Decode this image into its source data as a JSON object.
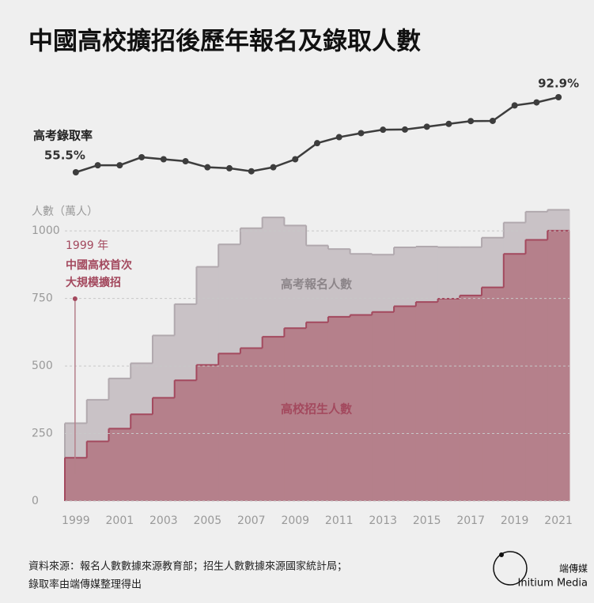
{
  "title": "中國高校擴招後歷年報名及錄取人數",
  "source": [
    "資料來源：報名人數數據來源教育部；招生人數數據來源國家統計局；",
    "錄取率由端傳媒整理得出"
  ],
  "brand": {
    "name": "端傳媒",
    "en": "Initium Media"
  },
  "chart_data": [
    {
      "type": "line",
      "label": "高考錄取率",
      "color": "#3d3d3d",
      "values": [
        55.5,
        59,
        59,
        63,
        62,
        61,
        58,
        57.5,
        56,
        58,
        62,
        70,
        73,
        75,
        76.7,
        76.8,
        78.2,
        79.6,
        81,
        81.1,
        88.8,
        90.3,
        92.9
      ],
      "value_labels": [
        "55.5%",
        null,
        null,
        null,
        null,
        null,
        null,
        null,
        null,
        null,
        null,
        null,
        null,
        null,
        null,
        null,
        null,
        null,
        null,
        null,
        null,
        null,
        "92.9%"
      ]
    },
    {
      "type": "step",
      "ylabel": "人數（萬人）",
      "categories": [
        "1999",
        null,
        "2001",
        null,
        "2003",
        null,
        "2005",
        null,
        "2007",
        null,
        "2009",
        null,
        "2011",
        null,
        "2013",
        null,
        "2015",
        null,
        "2017",
        null,
        "2019",
        null,
        "2021"
      ],
      "series": [
        {
          "name": "高考報名人數",
          "color": "#c9c2c6",
          "edge": "#b1a9ae",
          "label_color": "#8c8589",
          "values": [
            288,
            375,
            454,
            510,
            613,
            729,
            867,
            950,
            1010,
            1050,
            1020,
            946,
            933,
            915,
            912,
            939,
            942,
            940,
            940,
            975,
            1031,
            1071,
            1078
          ]
        },
        {
          "name": "高校招生人數",
          "color": "#b5808b",
          "edge": "#a3495e",
          "label_color": "#a3495e",
          "values": [
            160,
            221,
            268,
            321,
            382,
            447,
            504,
            546,
            566,
            608,
            640,
            662,
            682,
            689,
            700,
            721,
            737,
            749,
            761,
            791,
            915,
            967,
            1001
          ]
        }
      ],
      "ylim": [
        0,
        1100
      ],
      "yticks": [
        0,
        250,
        500,
        750,
        1000
      ],
      "grid": true,
      "annotations": [
        "1999 年",
        "中國高校首次",
        "大規模擴招"
      ]
    }
  ]
}
